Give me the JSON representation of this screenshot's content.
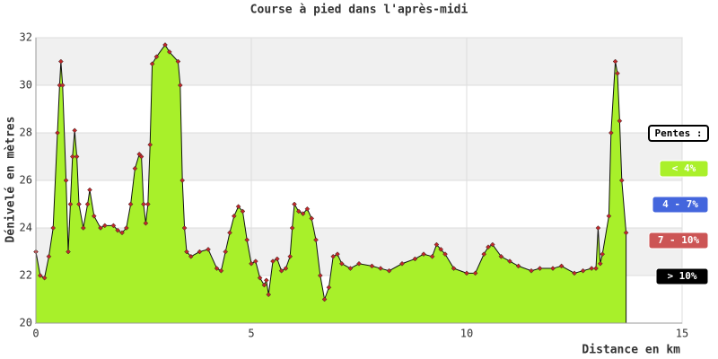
{
  "chart_data": {
    "type": "area",
    "title": "Course à pied dans l'après-midi",
    "x_label": "Distance en km",
    "y_label": "Dénivelé en mètres",
    "x": [
      0,
      0.1,
      0.2,
      0.3,
      0.4,
      0.5,
      0.55,
      0.58,
      0.62,
      0.7,
      0.75,
      0.8,
      0.85,
      0.9,
      0.95,
      1.0,
      1.1,
      1.2,
      1.25,
      1.35,
      1.5,
      1.6,
      1.8,
      1.9,
      2.0,
      2.1,
      2.2,
      2.3,
      2.4,
      2.45,
      2.5,
      2.55,
      2.6,
      2.65,
      2.7,
      2.8,
      3.0,
      3.1,
      3.3,
      3.35,
      3.4,
      3.45,
      3.5,
      3.6,
      3.8,
      4.0,
      4.2,
      4.3,
      4.4,
      4.5,
      4.6,
      4.7,
      4.8,
      4.9,
      5.0,
      5.1,
      5.2,
      5.3,
      5.35,
      5.4,
      5.5,
      5.6,
      5.7,
      5.8,
      5.9,
      5.95,
      6.0,
      6.1,
      6.2,
      6.3,
      6.4,
      6.5,
      6.6,
      6.7,
      6.8,
      6.9,
      7.0,
      7.1,
      7.3,
      7.5,
      7.8,
      8.0,
      8.2,
      8.5,
      8.8,
      9.0,
      9.2,
      9.3,
      9.4,
      9.5,
      9.7,
      10.0,
      10.2,
      10.4,
      10.5,
      10.6,
      10.8,
      11.0,
      11.2,
      11.5,
      11.7,
      12.0,
      12.2,
      12.5,
      12.7,
      12.9,
      13.0,
      13.05,
      13.1,
      13.15,
      13.3,
      13.35,
      13.45,
      13.5,
      13.55,
      13.6,
      13.7
    ],
    "values": [
      23,
      22,
      21.9,
      22.8,
      24,
      28,
      30,
      31,
      30,
      26,
      23,
      25,
      27,
      28.1,
      27,
      25,
      24,
      25,
      25.6,
      24.5,
      24,
      24.1,
      24.1,
      23.9,
      23.8,
      24,
      25,
      26.5,
      27.1,
      27,
      25,
      24.2,
      25,
      27.5,
      30.9,
      31.2,
      31.7,
      31.4,
      31,
      30,
      26,
      24,
      23,
      22.8,
      23,
      23.1,
      22.3,
      22.2,
      23,
      23.8,
      24.5,
      24.9,
      24.7,
      23.5,
      22.5,
      22.6,
      21.9,
      21.6,
      21.8,
      21.2,
      22.6,
      22.7,
      22.2,
      22.3,
      22.8,
      24,
      25,
      24.7,
      24.6,
      24.8,
      24.4,
      23.5,
      22,
      21,
      21.5,
      22.8,
      22.9,
      22.5,
      22.3,
      22.5,
      22.4,
      22.3,
      22.2,
      22.5,
      22.7,
      22.9,
      22.8,
      23.3,
      23.1,
      22.9,
      22.3,
      22.1,
      22.1,
      22.9,
      23.2,
      23.3,
      22.8,
      22.6,
      22.4,
      22.2,
      22.3,
      22.3,
      22.4,
      22.1,
      22.2,
      22.3,
      22.3,
      24,
      22.5,
      22.9,
      24.5,
      28,
      31,
      30.5,
      28.5,
      26,
      23.8
    ],
    "color": "#a8f02a",
    "marker_color": "#c0282a",
    "xlim": [
      0,
      15
    ],
    "ylim": [
      20,
      32
    ],
    "xticks": [
      0,
      5,
      10,
      15
    ],
    "yticks": [
      20,
      22,
      24,
      26,
      28,
      30,
      32
    ],
    "grid": true,
    "legend": {
      "title": "Pentes :",
      "position": "right",
      "items": [
        {
          "label": "< 4%",
          "color": "#aaf02a"
        },
        {
          "label": "4 - 7%",
          "color": "#4466dd"
        },
        {
          "label": "7 - 10%",
          "color": "#cc5555"
        },
        {
          "label": "> 10%",
          "color": "#000000"
        }
      ]
    }
  }
}
